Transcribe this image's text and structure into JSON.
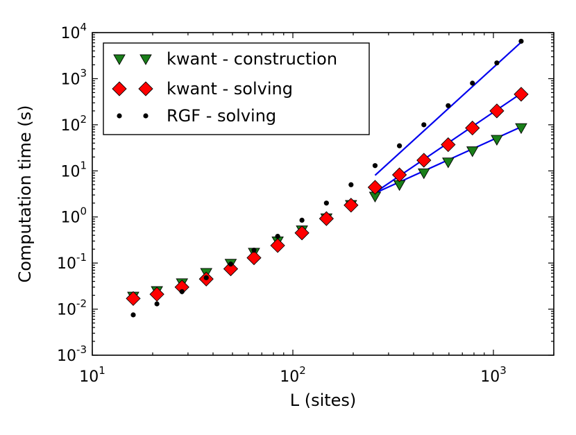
{
  "chart_data": {
    "type": "scatter",
    "title": "",
    "xlabel": "L (sites)",
    "ylabel": "Computation time (s)",
    "xscale": "log",
    "yscale": "log",
    "xlim": [
      10,
      2000
    ],
    "ylim": [
      0.001,
      10000
    ],
    "grid": false,
    "legend_position": "top-left",
    "x_ticks": [
      {
        "value": 10,
        "base": "10",
        "exp": "1"
      },
      {
        "value": 100,
        "base": "10",
        "exp": "2"
      },
      {
        "value": 1000,
        "base": "10",
        "exp": "3"
      }
    ],
    "y_ticks": [
      {
        "value": 0.001,
        "base": "10",
        "exp": "-3"
      },
      {
        "value": 0.01,
        "base": "10",
        "exp": "-2"
      },
      {
        "value": 0.1,
        "base": "10",
        "exp": "-1"
      },
      {
        "value": 1,
        "base": "10",
        "exp": "0"
      },
      {
        "value": 10,
        "base": "10",
        "exp": "1"
      },
      {
        "value": 100,
        "base": "10",
        "exp": "2"
      },
      {
        "value": 1000,
        "base": "10",
        "exp": "3"
      },
      {
        "value": 10000,
        "base": "10",
        "exp": "4"
      }
    ],
    "series": [
      {
        "name": "kwant - construction",
        "marker": "triangle-down",
        "color": "#1a7f1a",
        "x": [
          16,
          21,
          28,
          37,
          49,
          64,
          84,
          111,
          147,
          195,
          257,
          340,
          450,
          595,
          786,
          1040,
          1375
        ],
        "y": [
          0.019,
          0.025,
          0.037,
          0.062,
          0.098,
          0.17,
          0.3,
          0.52,
          0.95,
          1.85,
          2.8,
          5.0,
          9.0,
          15.5,
          27,
          48,
          86
        ]
      },
      {
        "name": "kwant - solving",
        "marker": "diamond",
        "color": "#ff0000",
        "x": [
          16,
          21,
          28,
          37,
          49,
          64,
          84,
          111,
          147,
          195,
          257,
          340,
          450,
          595,
          786,
          1040,
          1375
        ],
        "y": [
          0.017,
          0.021,
          0.03,
          0.045,
          0.075,
          0.13,
          0.24,
          0.45,
          0.92,
          1.8,
          4.4,
          8.2,
          17,
          37,
          85,
          200,
          460
        ]
      },
      {
        "name": "RGF - solving",
        "marker": "dot",
        "color": "#000000",
        "x": [
          16,
          21,
          28,
          37,
          49,
          64,
          84,
          111,
          147,
          195,
          257,
          340,
          450,
          595,
          786,
          1040,
          1375
        ],
        "y": [
          0.0075,
          0.013,
          0.024,
          0.048,
          0.095,
          0.19,
          0.38,
          0.85,
          2.0,
          5.0,
          13,
          35,
          100,
          260,
          800,
          2200,
          6500
        ]
      }
    ],
    "fit_lines": [
      {
        "name": "fit-construction",
        "color": "#0000ee",
        "x": [
          257,
          1375
        ],
        "y": [
          3.3,
          90
        ]
      },
      {
        "name": "fit-kwant-solving",
        "color": "#0000ee",
        "x": [
          257,
          1375
        ],
        "y": [
          3.4,
          480
        ]
      },
      {
        "name": "fit-rgf-solving",
        "color": "#0000ee",
        "x": [
          257,
          1375
        ],
        "y": [
          8.0,
          6200
        ]
      }
    ]
  }
}
